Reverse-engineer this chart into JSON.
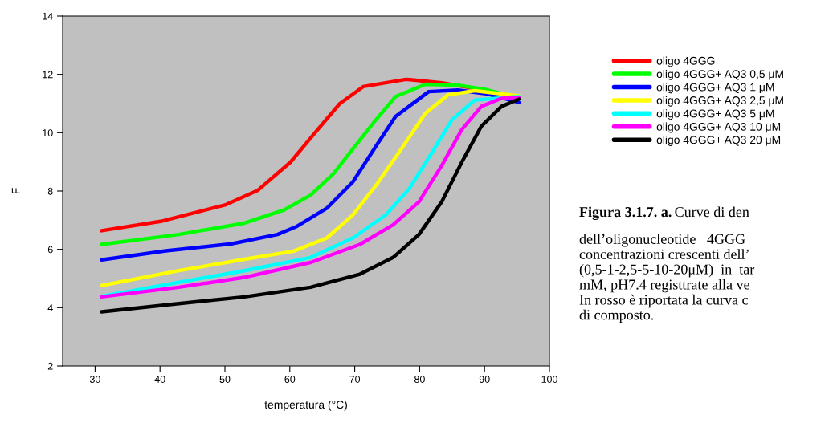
{
  "chart_data": {
    "type": "line",
    "xlabel": "temperatura (°C)",
    "ylabel": "F",
    "xlim": [
      25,
      100
    ],
    "xticks": [
      30,
      40,
      50,
      60,
      70,
      80,
      90,
      100
    ],
    "ylim": [
      2,
      14
    ],
    "yticks": [
      2,
      4,
      6,
      8,
      10,
      12,
      14
    ],
    "grid": false,
    "legend": "right",
    "marker": "none",
    "line_style": "solid",
    "series": [
      {
        "name": "oligo 4GGG",
        "color": "#ff0000",
        "x": [
          31,
          40.1,
          50,
          55.1,
          60.1,
          63.7,
          67.7,
          71.3,
          77.9,
          83.4,
          88.5,
          95.3
        ],
        "values": [
          6.64,
          6.96,
          7.52,
          8.03,
          8.99,
          9.95,
          11.0,
          11.58,
          11.83,
          11.71,
          11.52,
          11.18
        ]
      },
      {
        "name": "oligo 4GGG+ AQ3 0,5 μM",
        "color": "#00ff00",
        "x": [
          31,
          42.9,
          53,
          59.1,
          63.2,
          66.7,
          69.7,
          73.3,
          76.3,
          80.9,
          85.9,
          90,
          95.3
        ],
        "values": [
          6.17,
          6.51,
          6.9,
          7.35,
          7.86,
          8.59,
          9.44,
          10.45,
          11.24,
          11.66,
          11.63,
          11.49,
          11.18
        ]
      },
      {
        "name": "oligo 4GGG+ AQ3 1 μM",
        "color": "#0000ff",
        "x": [
          31,
          40.9,
          51,
          58.1,
          61.1,
          65.7,
          69.7,
          73.3,
          76.3,
          81.4,
          85.9,
          90.5,
          95.3
        ],
        "values": [
          5.64,
          5.95,
          6.19,
          6.51,
          6.79,
          7.41,
          8.31,
          9.55,
          10.56,
          11.41,
          11.46,
          11.33,
          11.04
        ]
      },
      {
        "name": "oligo 4GGG+ AQ3 2,5 μM",
        "color": "#ffff00",
        "x": [
          31,
          42.9,
          53,
          60.6,
          65.7,
          69.7,
          73.3,
          76.8,
          80.9,
          84.4,
          88.5,
          95.3
        ],
        "values": [
          4.76,
          5.27,
          5.66,
          5.94,
          6.39,
          7.18,
          8.2,
          9.32,
          10.67,
          11.3,
          11.44,
          11.26
        ]
      },
      {
        "name": "oligo 4GGG+ AQ3 5 μM",
        "color": "#00ffff",
        "x": [
          31,
          42.9,
          53,
          63.2,
          69.7,
          74.8,
          78.4,
          81.9,
          85,
          88.5,
          95.3
        ],
        "values": [
          4.39,
          4.87,
          5.27,
          5.72,
          6.39,
          7.18,
          8.08,
          9.32,
          10.45,
          11.12,
          11.24
        ]
      },
      {
        "name": "oligo 4GGG+ AQ3 10 μM",
        "color": "#ff00ff",
        "x": [
          31,
          42.9,
          53,
          63.2,
          70.8,
          75.9,
          79.9,
          83.4,
          86.5,
          89.5,
          92.6,
          95.3
        ],
        "values": [
          4.37,
          4.7,
          5.04,
          5.55,
          6.17,
          6.84,
          7.63,
          8.87,
          10.11,
          10.9,
          11.18,
          11.21
        ]
      },
      {
        "name": "oligo 4GGG+ AQ3 20 μM",
        "color": "#000000",
        "x": [
          31,
          42.9,
          53,
          63.2,
          70.8,
          75.9,
          79.9,
          83.4,
          86.5,
          89.5,
          92.6,
          95.3
        ],
        "values": [
          3.86,
          4.14,
          4.37,
          4.7,
          5.15,
          5.72,
          6.51,
          7.63,
          8.99,
          10.22,
          10.9,
          11.15
        ]
      }
    ],
    "annotations": [
      "Figura 3.1.7. a.",
      "Curve di den\ndell’oligonucleotide   4GGG\nconcentrazioni crescenti dell’\n(0,5-1-2,5-5-10-20μM)  in  tar\nmM, pH7.4 registtrate alla ve\nIn rosso è riportata la curva c\ndi composto."
    ]
  }
}
